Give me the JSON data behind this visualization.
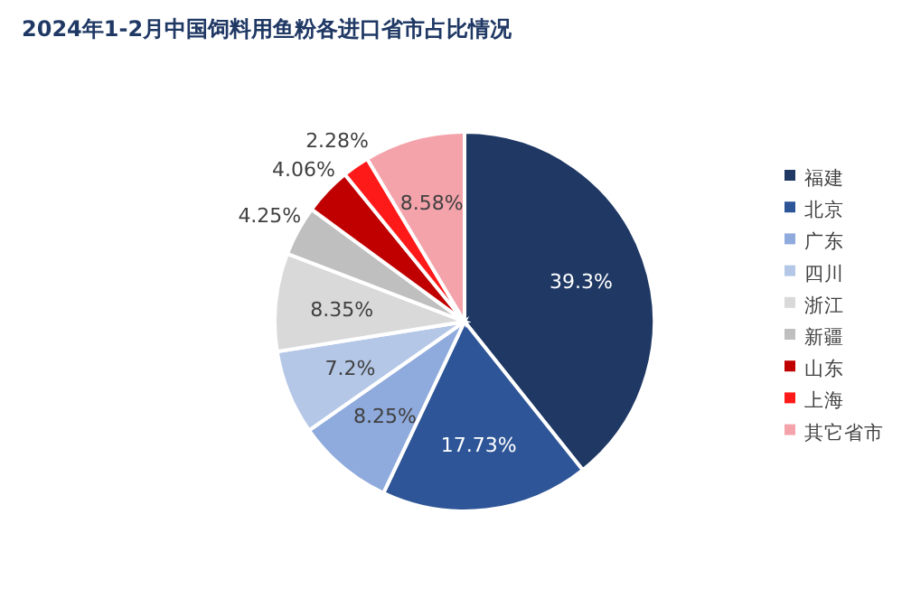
{
  "chart_data": {
    "type": "pie",
    "title": "2024年1-2月中国饲料用鱼粉各进口省市占比情况",
    "categories": [
      "福建",
      "北京",
      "广东",
      "四川",
      "浙江",
      "新疆",
      "山东",
      "上海",
      "其它省市"
    ],
    "values": [
      39.3,
      17.73,
      8.25,
      7.2,
      8.35,
      4.25,
      4.06,
      2.28,
      8.58
    ],
    "value_labels": [
      "39.3%",
      "17.73%",
      "8.25%",
      "7.2%",
      "8.35%",
      "4.25%",
      "4.06%",
      "2.28%",
      "8.58%"
    ],
    "colors": [
      "#1f3864",
      "#2e5597",
      "#8faadc",
      "#b4c7e7",
      "#d9d9d9",
      "#bfbfbf",
      "#c00000",
      "#ff1a1a",
      "#f4a3ab"
    ],
    "legend": "right"
  }
}
